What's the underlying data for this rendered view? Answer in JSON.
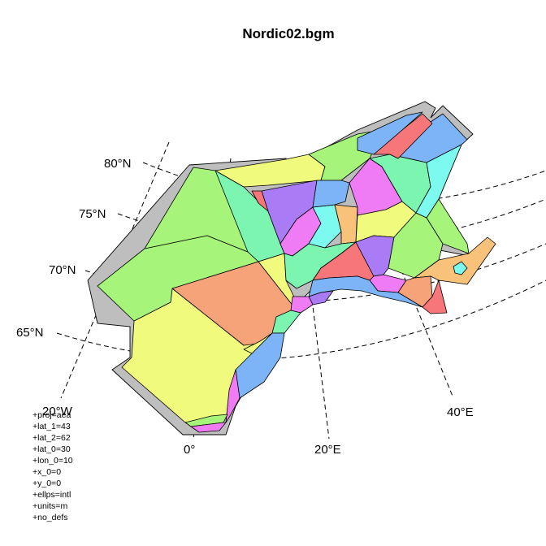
{
  "title": "Nordic02.bgm",
  "lat_labels": [
    "80°N",
    "75°N",
    "70°N",
    "65°N"
  ],
  "lon_labels": [
    "20°W",
    "0°",
    "20°E",
    "40°E"
  ],
  "proj_params": [
    "+proj=aea",
    "+lat_1=43",
    "+lat_2=62",
    "+lat_0=30",
    "+lon_0=10",
    "+x_0=0",
    "+y_0=0",
    "+ellps=intl",
    "+units=m",
    "+no_defs"
  ],
  "colors": {
    "outline": "#bebebe",
    "light_green": "#a6f57a",
    "salmon": "#f7a37a",
    "yellow": "#f0fa7c",
    "purple": "#a97cf6",
    "red": "#f7767a",
    "blue": "#7cb4f7",
    "aqua": "#7cfaf0",
    "mint": "#7cf5b0",
    "magenta": "#f07cf5",
    "orange": "#f8c27a"
  }
}
